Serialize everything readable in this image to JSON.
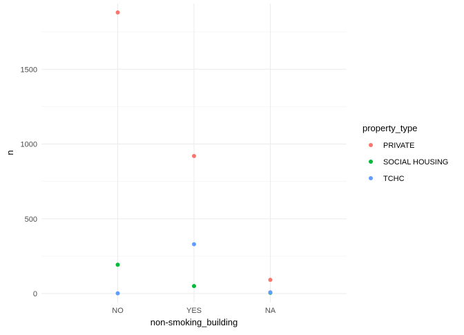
{
  "chart_data": {
    "type": "scatter",
    "xlabel": "non-smoking_building",
    "ylabel": "n",
    "categories": [
      "NO",
      "YES",
      "NA"
    ],
    "ylim": [
      -60,
      1940
    ],
    "y_ticks": [
      0,
      500,
      1000,
      1500
    ],
    "grid": true,
    "legend": {
      "title": "property_type",
      "position": "right"
    },
    "series": [
      {
        "name": "PRIVATE",
        "color": "#F8766D",
        "values": [
          1880,
          920,
          92
        ]
      },
      {
        "name": "SOCIAL HOUSING",
        "color": "#00BA38",
        "values": [
          193,
          50,
          5
        ]
      },
      {
        "name": "TCHC",
        "color": "#619CFF",
        "values": [
          2,
          330,
          8
        ]
      }
    ]
  }
}
